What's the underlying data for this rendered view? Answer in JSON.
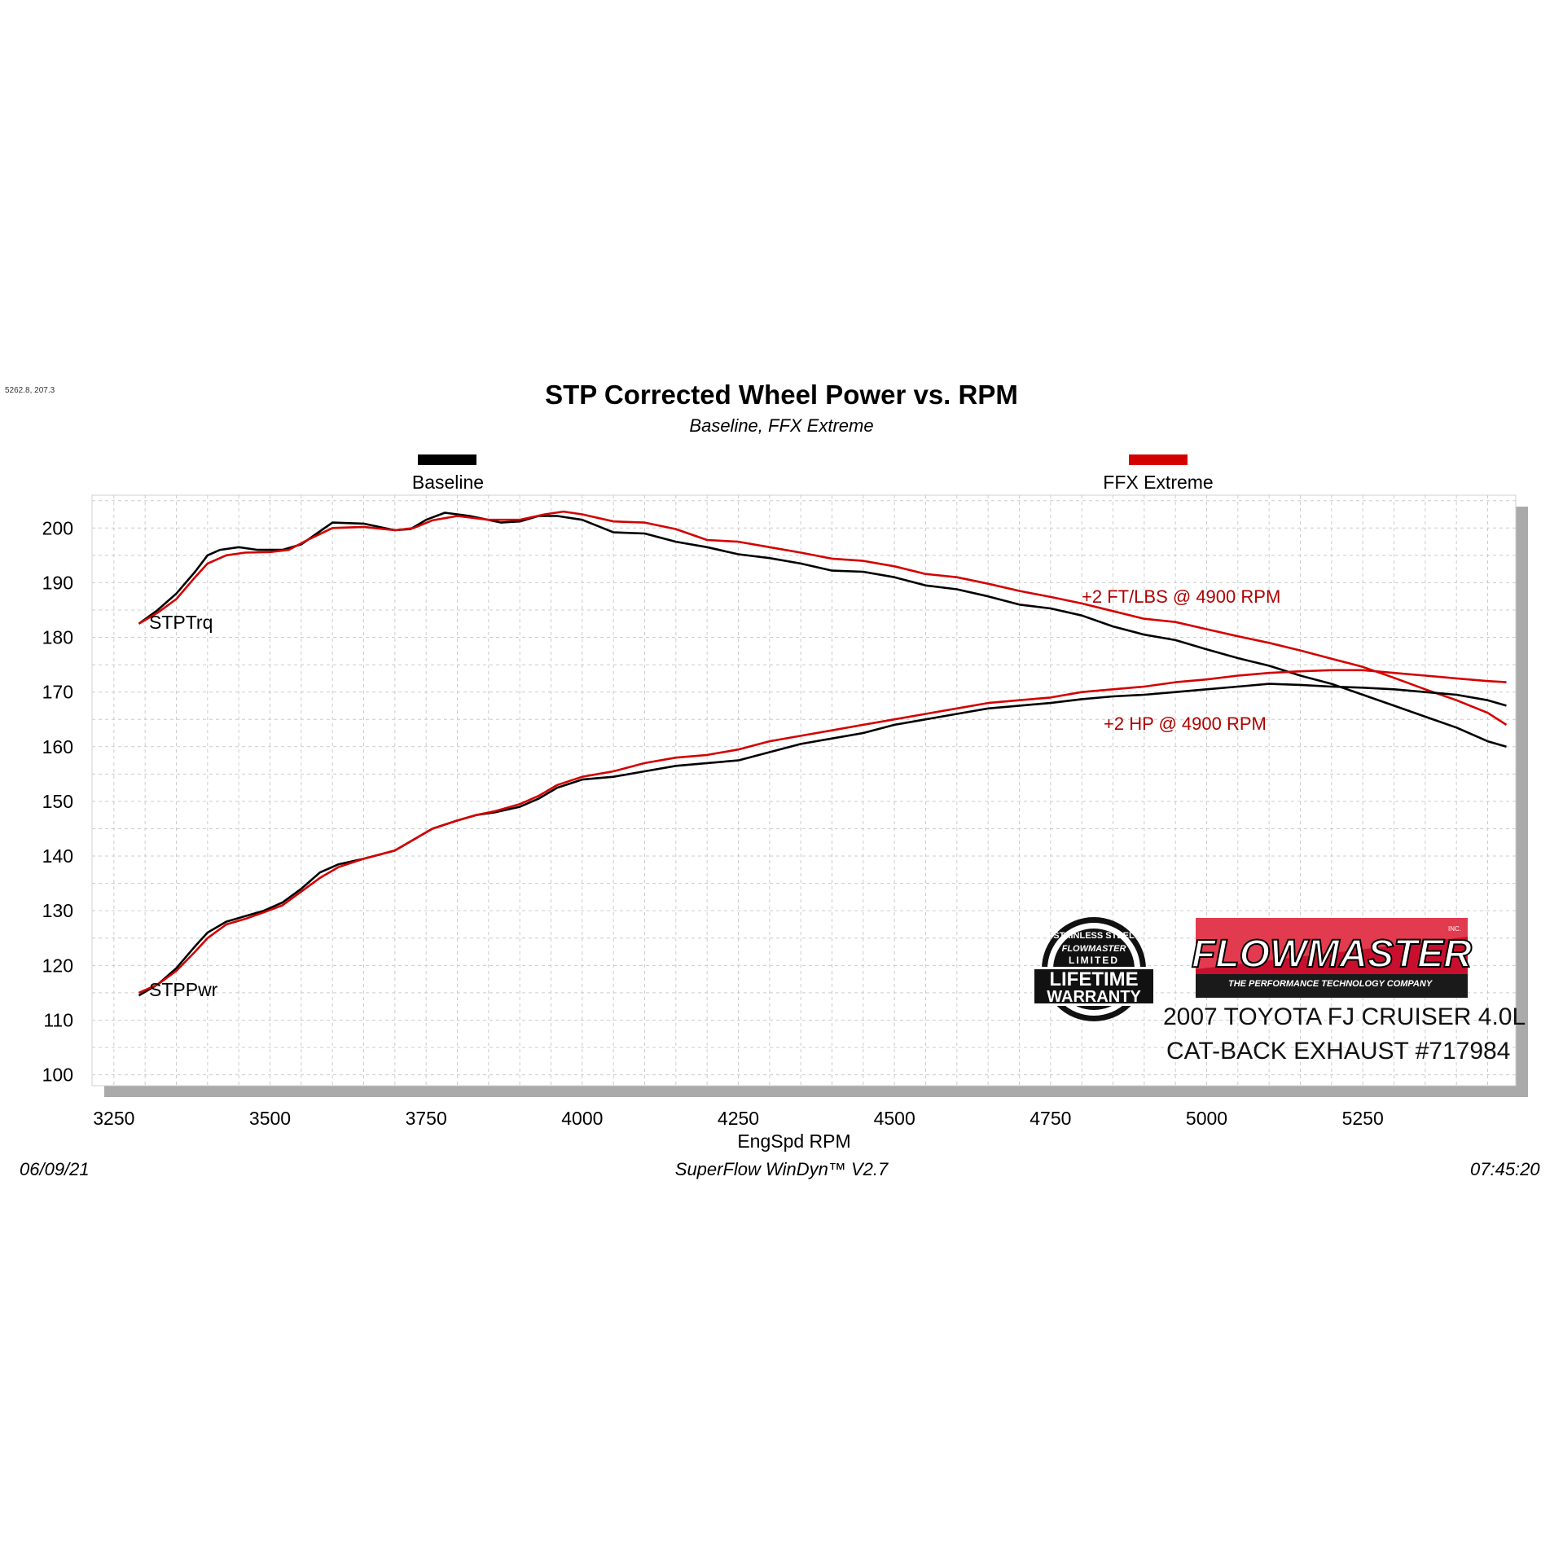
{
  "cursor_readout": "5262.8, 207.3",
  "header": {
    "title": "STP Corrected Wheel Power vs. RPM",
    "subtitle": "Baseline, FFX Extreme"
  },
  "legend": [
    {
      "label": "Baseline",
      "color": "#000000"
    },
    {
      "label": "FFX Extreme",
      "color": "#d40000"
    }
  ],
  "annotations": {
    "torque_gain": "+2 FT/LBS @ 4900 RPM",
    "power_gain": "+2 HP @ 4900 RPM",
    "torque_curve_label": "STPTrq",
    "power_curve_label": "STPPwr"
  },
  "branding": {
    "warranty_badge": [
      "STAINLESS STEEL",
      "FLOWMASTER",
      "LIMITED",
      "LIFETIME",
      "WARRANTY"
    ],
    "brand_name": "FLOWMASTER",
    "brand_inc": "INC.",
    "brand_tagline": "THE PERFORMANCE TECHNOLOGY COMPANY",
    "vehicle_line1": "2007 TOYOTA FJ CRUISER 4.0L",
    "vehicle_line2": "CAT-BACK EXHAUST #717984"
  },
  "footer": {
    "date": "06/09/21",
    "software": "SuperFlow WinDyn™  V2.7",
    "time": "07:45:20"
  },
  "colors": {
    "baseline": "#000000",
    "ffx": "#d40000",
    "annotation": "#b00000",
    "grid": "#cccccc"
  },
  "chart_data": {
    "type": "line",
    "title": "STP Corrected Wheel Power vs. RPM",
    "subtitle": "Baseline, FFX Extreme",
    "xlabel": "EngSpd  RPM",
    "ylabel": "",
    "xlim": [
      3215,
      5495
    ],
    "ylim": [
      98,
      206
    ],
    "xticks": [
      3250,
      3500,
      3750,
      4000,
      4250,
      4500,
      4750,
      5000,
      5250
    ],
    "yticks": [
      100,
      110,
      120,
      130,
      140,
      150,
      160,
      170,
      180,
      190,
      200
    ],
    "grid": true,
    "legend_position": "top",
    "series": [
      {
        "name": "Baseline",
        "group": "STPTrq",
        "color": "#000000",
        "x": [
          3290,
          3320,
          3350,
          3380,
          3400,
          3420,
          3450,
          3480,
          3520,
          3550,
          3575,
          3600,
          3650,
          3700,
          3725,
          3750,
          3780,
          3820,
          3870,
          3900,
          3930,
          3960,
          4000,
          4050,
          4100,
          4150,
          4200,
          4250,
          4300,
          4350,
          4400,
          4450,
          4500,
          4550,
          4600,
          4650,
          4700,
          4750,
          4800,
          4850,
          4900,
          4950,
          5000,
          5050,
          5100,
          5150,
          5200,
          5250,
          5300,
          5350,
          5400,
          5450,
          5480
        ],
        "y": [
          182.5,
          185,
          188,
          192,
          195,
          196,
          196.5,
          196,
          196,
          197,
          199,
          201,
          200.8,
          199.6,
          199.8,
          201.5,
          202.8,
          202.2,
          201,
          201.2,
          202.2,
          202.2,
          201.5,
          199.2,
          199,
          197.5,
          196.5,
          195.2,
          194.5,
          193.5,
          192.2,
          192,
          191,
          189.5,
          188.8,
          187.5,
          186,
          185.3,
          184,
          182,
          180.5,
          179.5,
          177.8,
          176.2,
          174.8,
          173,
          171.5,
          169.5,
          167.5,
          165.5,
          163.5,
          161,
          160
        ]
      },
      {
        "name": "FFX Extreme",
        "group": "STPTrq",
        "color": "#d40000",
        "x": [
          3290,
          3320,
          3350,
          3380,
          3400,
          3430,
          3460,
          3500,
          3530,
          3560,
          3600,
          3650,
          3700,
          3730,
          3760,
          3800,
          3850,
          3900,
          3940,
          3970,
          4000,
          4050,
          4100,
          4150,
          4200,
          4250,
          4300,
          4350,
          4400,
          4450,
          4500,
          4550,
          4600,
          4650,
          4700,
          4750,
          4800,
          4850,
          4900,
          4950,
          5000,
          5050,
          5100,
          5150,
          5200,
          5250,
          5300,
          5350,
          5400,
          5450,
          5480
        ],
        "y": [
          182.5,
          184.5,
          187,
          191,
          193.5,
          195,
          195.5,
          195.6,
          196,
          197.8,
          200,
          200.2,
          199.6,
          200,
          201.4,
          202.2,
          201.5,
          201.5,
          202.5,
          203,
          202.5,
          201.2,
          201,
          199.8,
          197.8,
          197.5,
          196.5,
          195.5,
          194.4,
          194,
          193,
          191.6,
          191,
          189.8,
          188.5,
          187.4,
          186.2,
          184.8,
          183.4,
          182.8,
          181.5,
          180.2,
          179,
          177.6,
          176.1,
          174.6,
          172.6,
          170.5,
          168.5,
          166.2,
          164
        ]
      },
      {
        "name": "Baseline",
        "group": "STPPwr",
        "color": "#000000",
        "x": [
          3290,
          3320,
          3350,
          3380,
          3400,
          3430,
          3460,
          3490,
          3520,
          3550,
          3580,
          3610,
          3650,
          3700,
          3730,
          3760,
          3800,
          3830,
          3860,
          3900,
          3930,
          3960,
          4000,
          4050,
          4100,
          4150,
          4200,
          4250,
          4300,
          4350,
          4400,
          4450,
          4500,
          4550,
          4600,
          4650,
          4700,
          4750,
          4800,
          4850,
          4900,
          4950,
          5000,
          5050,
          5100,
          5150,
          5200,
          5250,
          5300,
          5350,
          5400,
          5450,
          5480
        ],
        "y": [
          114.5,
          116.5,
          119.5,
          123.5,
          126,
          128,
          129,
          130,
          131.5,
          134,
          137,
          138.5,
          139.5,
          141,
          143,
          145,
          146.5,
          147.5,
          148,
          149,
          150.5,
          152.5,
          154,
          154.5,
          155.5,
          156.5,
          157,
          157.5,
          159,
          160.5,
          161.5,
          162.5,
          164,
          165,
          166,
          167,
          167.5,
          168,
          168.7,
          169.2,
          169.5,
          170,
          170.5,
          171,
          171.5,
          171.3,
          171,
          170.8,
          170.5,
          170,
          169.5,
          168.5,
          167.5
        ]
      },
      {
        "name": "FFX Extreme",
        "group": "STPPwr",
        "color": "#d40000",
        "x": [
          3290,
          3320,
          3350,
          3380,
          3400,
          3430,
          3460,
          3490,
          3520,
          3550,
          3580,
          3610,
          3650,
          3700,
          3730,
          3760,
          3800,
          3830,
          3860,
          3900,
          3930,
          3960,
          4000,
          4050,
          4100,
          4150,
          4200,
          4250,
          4300,
          4350,
          4400,
          4450,
          4500,
          4550,
          4600,
          4650,
          4700,
          4750,
          4800,
          4850,
          4900,
          4950,
          5000,
          5050,
          5100,
          5150,
          5200,
          5250,
          5300,
          5350,
          5400,
          5450,
          5480
        ],
        "y": [
          115,
          116.5,
          119,
          122.5,
          125,
          127.5,
          128.5,
          129.7,
          131,
          133.5,
          136,
          138,
          139.5,
          141,
          143,
          145,
          146.5,
          147.5,
          148.2,
          149.5,
          151,
          153,
          154.5,
          155.5,
          157,
          158,
          158.5,
          159.5,
          161,
          162,
          163,
          164,
          165,
          166,
          167,
          168,
          168.5,
          169,
          170,
          170.5,
          171,
          171.8,
          172.3,
          173,
          173.5,
          173.8,
          174,
          174,
          173.5,
          173,
          172.5,
          172,
          171.8
        ]
      }
    ]
  }
}
